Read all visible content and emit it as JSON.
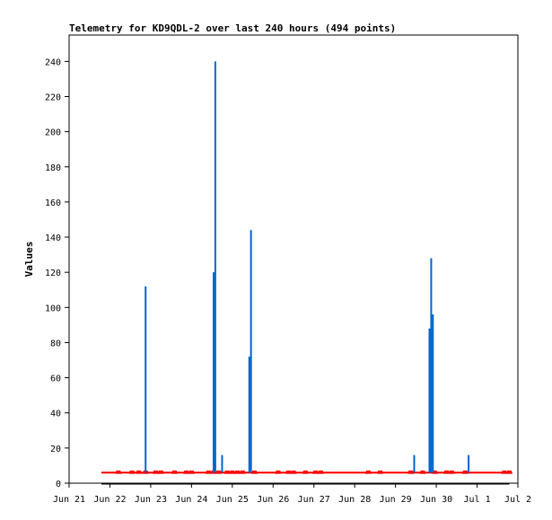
{
  "chart_data": {
    "type": "line",
    "title": "Telemetry for KD9QDL-2 over last 240 hours (494 points)",
    "xlabel": "",
    "ylabel": "Values",
    "ylim": [
      0,
      255
    ],
    "yticks": [
      0,
      20,
      40,
      60,
      80,
      100,
      120,
      140,
      160,
      180,
      200,
      220,
      240
    ],
    "xlim": [
      "2024-06-21T00:00",
      "2024-07-02T00:00"
    ],
    "xticks": [
      {
        "label": "Jun 21",
        "date": "2024-06-21T00:00"
      },
      {
        "label": "Jun 22",
        "date": "2024-06-22T00:00"
      },
      {
        "label": "Jun 23",
        "date": "2024-06-23T00:00"
      },
      {
        "label": "Jun 24",
        "date": "2024-06-24T00:00"
      },
      {
        "label": "Jun 25",
        "date": "2024-06-25T00:00"
      },
      {
        "label": "Jun 26",
        "date": "2024-06-26T00:00"
      },
      {
        "label": "Jun 27",
        "date": "2024-06-27T00:00"
      },
      {
        "label": "Jun 28",
        "date": "2024-06-28T00:00"
      },
      {
        "label": "Jun 29",
        "date": "2024-06-29T00:00"
      },
      {
        "label": "Jun 30",
        "date": "2024-06-30T00:00"
      },
      {
        "label": "Jul 1",
        "date": "2024-07-01T00:00"
      },
      {
        "label": "Jul 2",
        "date": "2024-07-02T00:00"
      }
    ],
    "grid": false,
    "series": [
      {
        "color": "#000000",
        "points": [
          [
            "2024-06-21T19:00",
            0
          ],
          [
            "2024-07-01T19:00",
            0
          ]
        ]
      },
      {
        "color": "#ff0000",
        "baseline": 6,
        "range": [
          "2024-06-21T19:00",
          "2024-07-01T19:00"
        ],
        "markers": [
          "2024-06-22T05:00",
          "2024-06-22T13:00",
          "2024-06-22T17:00",
          "2024-06-22T21:00",
          "2024-06-23T03:00",
          "2024-06-23T06:00",
          "2024-06-23T14:00",
          "2024-06-23T21:00",
          "2024-06-24T00:00",
          "2024-06-24T10:00",
          "2024-06-24T13:00",
          "2024-06-24T16:00",
          "2024-06-24T21:00",
          "2024-06-25T00:00",
          "2024-06-25T03:00",
          "2024-06-25T06:00",
          "2024-06-25T13:00",
          "2024-06-26T03:00",
          "2024-06-26T09:00",
          "2024-06-26T12:00",
          "2024-06-26T19:00",
          "2024-06-27T01:00",
          "2024-06-27T04:00",
          "2024-06-28T08:00",
          "2024-06-28T15:00",
          "2024-06-29T09:00",
          "2024-06-29T16:00",
          "2024-06-29T23:00",
          "2024-06-30T06:00",
          "2024-06-30T09:00",
          "2024-06-30T17:00",
          "2024-07-01T16:00",
          "2024-07-01T19:00"
        ]
      },
      {
        "color": "#0066cc",
        "baseline": 6,
        "spikes": [
          [
            "2024-06-22T21:00",
            112
          ],
          [
            "2024-06-24T13:00",
            120
          ],
          [
            "2024-06-24T14:00",
            240
          ],
          [
            "2024-06-24T18:00",
            16
          ],
          [
            "2024-06-25T10:00",
            72
          ],
          [
            "2024-06-25T11:00",
            144
          ],
          [
            "2024-06-29T11:00",
            16
          ],
          [
            "2024-06-29T20:00",
            88
          ],
          [
            "2024-06-29T21:00",
            128
          ],
          [
            "2024-06-29T22:00",
            96
          ],
          [
            "2024-06-30T19:00",
            16
          ]
        ]
      }
    ]
  }
}
